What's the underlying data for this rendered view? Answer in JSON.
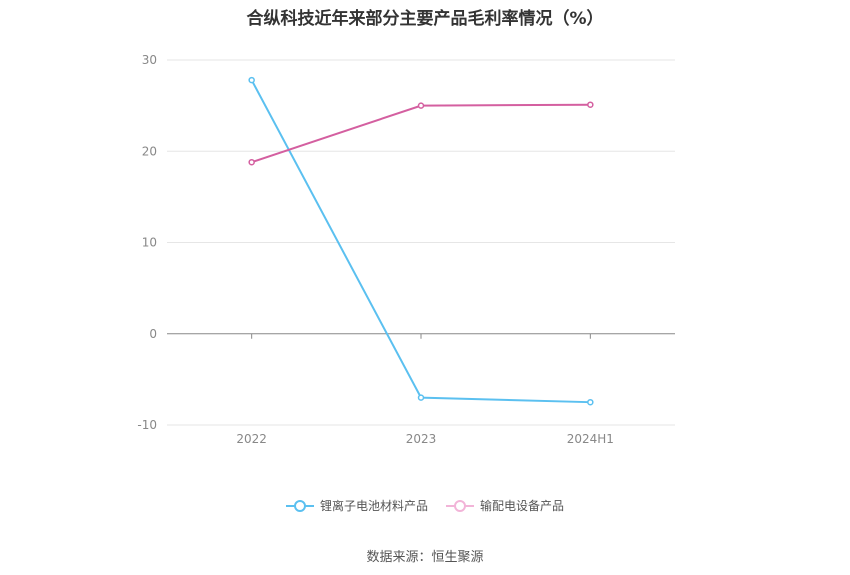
{
  "chart_data": {
    "type": "line",
    "title": "合纵科技近年来部分主要产品毛利率情况（%）",
    "categories": [
      "2022",
      "2023",
      "2024H1"
    ],
    "series": [
      {
        "name": "锂离子电池材料产品",
        "color": "#5bc0f0",
        "values": [
          27.8,
          -7.0,
          -7.5
        ]
      },
      {
        "name": "输配电设备产品",
        "color": "#d45fa0",
        "values": [
          18.8,
          25.0,
          25.1
        ]
      }
    ],
    "yticks": [
      30,
      20,
      10,
      0,
      -10
    ],
    "ylim": [
      -10,
      30
    ],
    "grid": true,
    "legend_position": "bottom"
  },
  "source": "数据来源：恒生聚源"
}
